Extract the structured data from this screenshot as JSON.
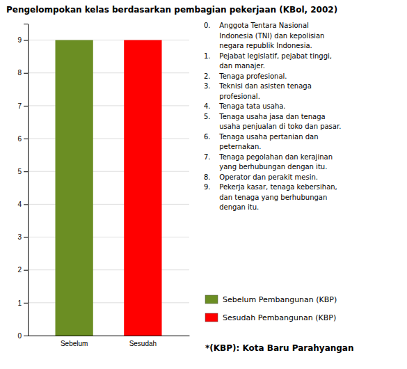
{
  "chart_data": {
    "type": "bar",
    "title": "Pengelompokan kelas berdasarkan pembagian pekerjaan (KBol, 2002)",
    "categories": [
      "Sebelum",
      "Sesudah"
    ],
    "series": [
      {
        "name": "Sebelum Pembangunan (KBP)",
        "color": "#6b8e23",
        "values": [
          9,
          null
        ]
      },
      {
        "name": "Sesudah Pembangunan (KBP)",
        "color": "#ff0000",
        "values": [
          null,
          9
        ]
      }
    ],
    "stacked": true,
    "ylim": [
      0,
      9.5
    ],
    "yticks": [
      0,
      1,
      2,
      3,
      4,
      5,
      6,
      7,
      8,
      9
    ],
    "grid": true,
    "legend": "lower right",
    "annotations": [
      "0.    Anggota Tentara Nasional\n       Indonesia (TNI) dan kepolisian\n       negara republik Indonesia.",
      "1.    Pejabat legislatif, pejabat tinggi,\n       dan manajer.",
      "2.    Tenaga profesional.",
      "3.    Teknisi dan asisten tenaga\n       profesional.",
      "4.    Tenaga tata usaha.",
      "5.    Tenaga usaha jasa dan tenaga\n       usaha penjualan di toko dan pasar.",
      "6.    Tenaga usaha pertanian dan\n       peternakan.",
      "7.    Tenaga pegolahan dan kerajinan\n       yang berhubungan dengan itu.",
      "8.    Operator dan perakit mesin.",
      "9.    Pekerja kasar, tenaga kebersihan,\n       dan tenaga yang berhubungan\n       dengan itu."
    ],
    "footnote": "*(KBP): Kota Baru Parahyangan"
  }
}
